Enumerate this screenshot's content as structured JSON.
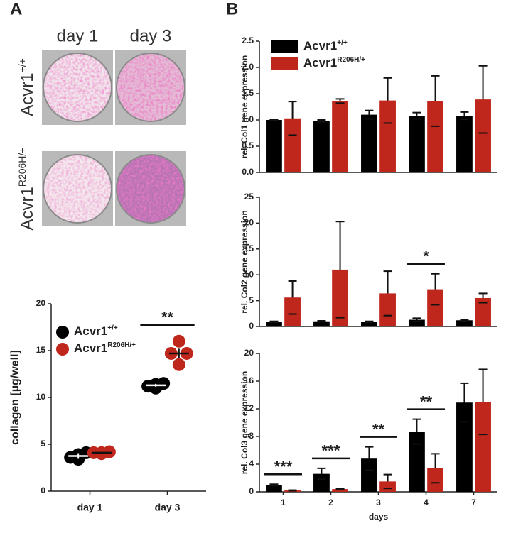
{
  "panel_labels": [
    "A",
    "B"
  ],
  "images": {
    "columns": [
      "day 1",
      "day 3"
    ],
    "rows": [
      {
        "text": "Acvr1",
        "sup": "+/+"
      },
      {
        "text": "Acvr1",
        "sup": "R206H/+"
      }
    ]
  },
  "chart_data": [
    {
      "type": "dot",
      "ylabel": "collagen [µg/well]",
      "categories": [
        "day 1",
        "day 3"
      ],
      "ylim": [
        0,
        20
      ],
      "yticks": [
        0,
        5,
        10,
        15,
        20
      ],
      "legend": "upper left",
      "series": [
        {
          "name": "Acvr1",
          "name_sup": "+/+",
          "color": "#000000",
          "values": [
            [
              3.9,
              3.6,
              4.1,
              3.4
            ],
            [
              11.4,
              11.2,
              11.5,
              11.0
            ]
          ],
          "means": [
            3.75,
            11.3
          ],
          "errors": [
            0.3,
            0.15
          ]
        },
        {
          "name": "Acvr1",
          "name_sup": "R206H/+",
          "color": "#c0271c",
          "values": [
            [
              4.1,
              4.1,
              4.2,
              4.0
            ],
            [
              16.0,
              14.7,
              14.7,
              13.5
            ]
          ],
          "means": [
            4.1,
            14.7
          ],
          "errors": [
            0.1,
            0.5
          ]
        }
      ],
      "annotations": [
        {
          "text": "**",
          "category": "day 3"
        }
      ]
    },
    {
      "type": "bar",
      "ylabel": "rel. Col1 gene expression",
      "ylim": [
        0,
        2.5
      ],
      "yticks": [
        {
          "value": 0,
          "label": "0.0"
        },
        0.5,
        {
          "value": 1,
          "label": "1.0"
        },
        1.5,
        {
          "value": 2,
          "label": "2.0"
        },
        2.5
      ],
      "legend": "upper left",
      "series": [
        {
          "name": "Acvr1",
          "name_sup": "+/+",
          "color": "#000000",
          "values": [
            1.0,
            0.98,
            1.1,
            1.08,
            1.08
          ],
          "errors": [
            0.0,
            0.02,
            0.08,
            0.06,
            0.07
          ]
        },
        {
          "name": "Acvr1",
          "name_sup": "R206H/+",
          "color": "#c0271c",
          "values": [
            1.03,
            1.36,
            1.37,
            1.36,
            1.39
          ],
          "errors": [
            0.32,
            0.04,
            0.43,
            0.48,
            0.64
          ]
        }
      ]
    },
    {
      "type": "bar",
      "ylabel": "rel. Col2 gene expression",
      "ylim": [
        0,
        25
      ],
      "yticks": [
        0,
        5,
        10,
        15,
        20,
        25
      ],
      "series": [
        {
          "color": "#000000",
          "values": [
            0.9,
            1.0,
            0.9,
            1.3,
            1.2
          ],
          "errors": [
            0.1,
            0.1,
            0.1,
            0.3,
            0.1
          ]
        },
        {
          "color": "#c0271c",
          "values": [
            5.6,
            11.0,
            6.4,
            7.2,
            5.5
          ],
          "errors": [
            3.2,
            9.3,
            4.3,
            3.0,
            0.9
          ]
        }
      ],
      "annotations": [
        {
          "text": "*",
          "index": 3
        }
      ]
    },
    {
      "type": "bar",
      "ylabel": "rel. Col3 gene expression",
      "xlabel": "days",
      "categories": [
        "1",
        "2",
        "3",
        "4",
        "7"
      ],
      "ylim": [
        0,
        20
      ],
      "yticks": [
        0,
        4,
        8,
        12,
        16,
        20
      ],
      "series": [
        {
          "color": "#000000",
          "values": [
            1.0,
            2.6,
            4.8,
            8.7,
            12.9
          ],
          "errors": [
            0.1,
            0.8,
            1.7,
            1.8,
            2.8
          ]
        },
        {
          "color": "#c0271c",
          "values": [
            0.2,
            0.4,
            1.5,
            3.4,
            13.0
          ],
          "errors": [
            0.05,
            0.1,
            1.0,
            2.1,
            4.7
          ]
        }
      ],
      "annotations": [
        {
          "text": "***",
          "category": "1"
        },
        {
          "text": "***",
          "category": "2"
        },
        {
          "text": "**",
          "category": "3"
        },
        {
          "text": "**",
          "category": "4"
        }
      ]
    }
  ]
}
